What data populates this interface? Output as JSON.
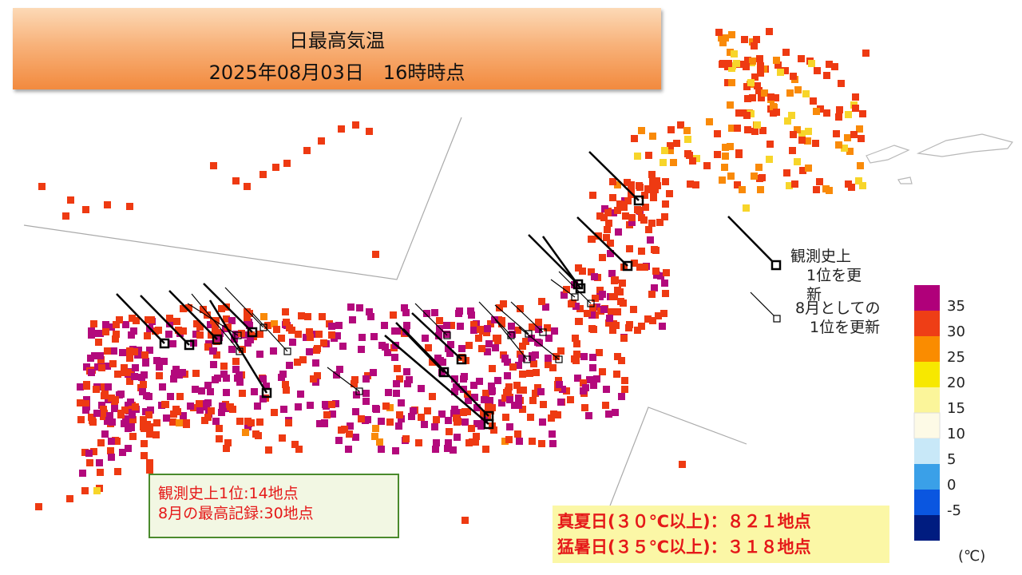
{
  "title": {
    "line1": "日最高気温",
    "line2": "2025年08月03日　16時時点"
  },
  "legend": {
    "record_all_time": [
      "観測史上",
      "1位を更新"
    ],
    "record_august": [
      "8月としての",
      "1位を更新"
    ]
  },
  "record_summary": {
    "all_time": "観測史上1位:14地点",
    "august": "8月の最高記録:30地点"
  },
  "counts": {
    "manatsubi": "真夏日(３０℃以上)：８２１地点",
    "moshobi": "猛暑日(３５℃以上)：３１８地点"
  },
  "colorbar": {
    "unit": "(℃)",
    "ticks": [
      "35",
      "30",
      "25",
      "20",
      "15",
      "10",
      "5",
      "0",
      "-5"
    ],
    "colors": [
      "#b0007a",
      "#ee3e16",
      "#fa8c00",
      "#f7e800",
      "#fbf59a",
      "#fdfae6",
      "#c8e8f8",
      "#3aa0e8",
      "#0a56e0",
      "#001c80"
    ]
  },
  "station_colors": {
    "ge35": "#b3097c",
    "30_35": "#ee3a12",
    "25_30": "#f98a09",
    "20_25": "#f7d52a"
  }
}
